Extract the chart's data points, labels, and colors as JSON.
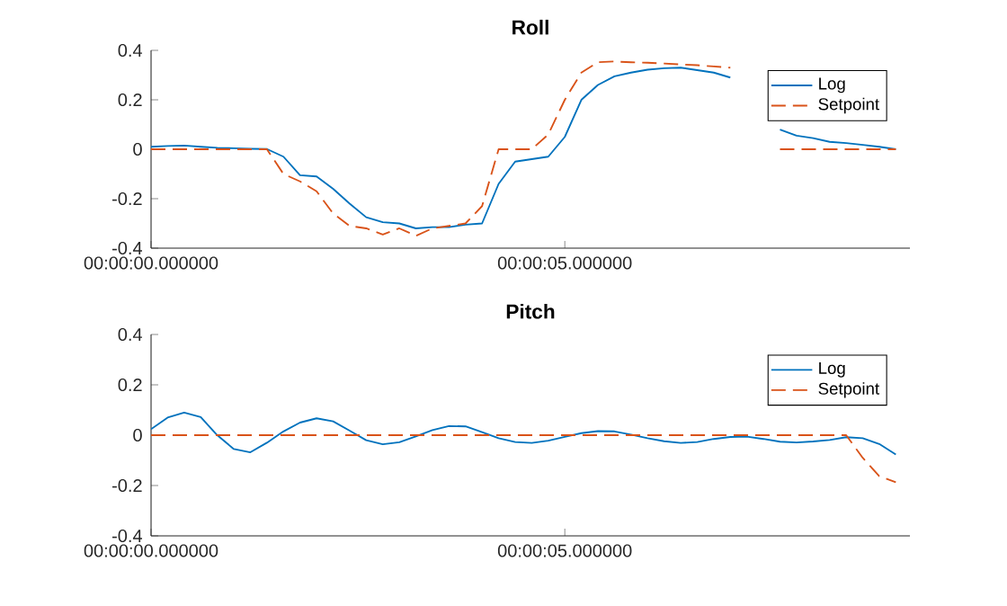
{
  "chart_data": [
    {
      "type": "line",
      "title": "Roll",
      "categories": [
        "00:00:00.000000",
        null,
        null,
        null,
        null,
        null,
        null,
        null,
        null,
        null,
        null,
        null,
        null,
        null,
        null,
        null,
        null,
        null,
        null,
        null,
        null,
        null,
        null,
        null,
        null,
        "00:00:05.000000",
        null,
        null,
        null,
        null,
        null,
        null,
        null,
        null,
        null,
        null,
        null,
        null,
        null,
        null,
        null,
        null,
        null,
        null,
        null,
        null
      ],
      "ylim": [
        -0.4,
        0.4
      ],
      "yticks": [
        -0.4,
        -0.2,
        0,
        0.2,
        0.4
      ],
      "legend": "top right",
      "marker": "none",
      "series": [
        {
          "name": "Log",
          "color": "#0072bd",
          "line_style": "solid",
          "values": [
            0.01,
            0.013,
            0.015,
            0.01,
            0.006,
            0.004,
            0.002,
            0.001,
            -0.03,
            -0.105,
            -0.11,
            -0.16,
            -0.22,
            -0.275,
            -0.295,
            -0.3,
            -0.32,
            -0.315,
            -0.315,
            -0.305,
            -0.3,
            -0.14,
            -0.05,
            -0.04,
            -0.03,
            0.05,
            0.2,
            0.26,
            0.295,
            0.31,
            0.322,
            0.328,
            0.33,
            0.32,
            0.31,
            0.29,
            null,
            null,
            0.08,
            0.055,
            0.045,
            0.03,
            0.025,
            0.018,
            0.01,
            0
          ]
        },
        {
          "name": "Setpoint",
          "color": "#d95319",
          "line_style": "dashed",
          "values": [
            0,
            0,
            0,
            0,
            0,
            0,
            0,
            0,
            -0.1,
            -0.13,
            -0.17,
            -0.26,
            -0.31,
            -0.32,
            -0.345,
            -0.32,
            -0.35,
            -0.32,
            -0.31,
            -0.3,
            -0.23,
            0,
            0,
            0,
            0.06,
            0.2,
            0.31,
            0.352,
            0.355,
            0.352,
            0.35,
            0.347,
            0.343,
            0.34,
            0.335,
            0.33,
            null,
            null,
            0,
            0,
            0,
            0,
            0,
            0,
            0,
            0
          ]
        }
      ]
    },
    {
      "type": "line",
      "title": "Pitch",
      "categories": [
        "00:00:00.000000",
        null,
        null,
        null,
        null,
        null,
        null,
        null,
        null,
        null,
        null,
        null,
        null,
        null,
        null,
        null,
        null,
        null,
        null,
        null,
        null,
        null,
        null,
        null,
        null,
        "00:00:05.000000",
        null,
        null,
        null,
        null,
        null,
        null,
        null,
        null,
        null,
        null,
        null,
        null,
        null,
        null,
        null,
        null,
        null,
        null,
        null,
        null
      ],
      "ylim": [
        -0.4,
        0.4
      ],
      "yticks": [
        -0.4,
        -0.2,
        0,
        0.2,
        0.4
      ],
      "legend": "top right",
      "marker": "none",
      "series": [
        {
          "name": "Log",
          "color": "#0072bd",
          "line_style": "solid",
          "values": [
            0.024,
            0.07,
            0.09,
            0.072,
            0,
            -0.055,
            -0.068,
            -0.03,
            0.015,
            0.05,
            0.067,
            0.055,
            0.018,
            -0.02,
            -0.036,
            -0.028,
            -0.005,
            0.02,
            0.036,
            0.035,
            0.012,
            -0.012,
            -0.027,
            -0.031,
            -0.022,
            -0.007,
            0.008,
            0.016,
            0.015,
            0.002,
            -0.012,
            -0.024,
            -0.031,
            -0.027,
            -0.015,
            -0.007,
            -0.006,
            -0.015,
            -0.026,
            -0.029,
            -0.025,
            -0.019,
            -0.008,
            -0.012,
            -0.035,
            -0.077
          ]
        },
        {
          "name": "Setpoint",
          "color": "#d95319",
          "line_style": "dashed",
          "values": [
            0,
            0,
            0,
            0,
            0,
            0,
            0,
            0,
            0,
            0,
            0,
            0,
            0,
            0,
            0,
            0,
            0,
            0,
            0,
            0,
            0,
            0,
            0,
            0,
            0,
            0,
            0,
            0,
            0,
            0,
            0,
            0,
            0,
            0,
            0,
            0,
            0,
            0,
            0,
            0,
            0,
            0,
            0,
            -0.09,
            -0.163,
            -0.187
          ]
        }
      ]
    }
  ]
}
